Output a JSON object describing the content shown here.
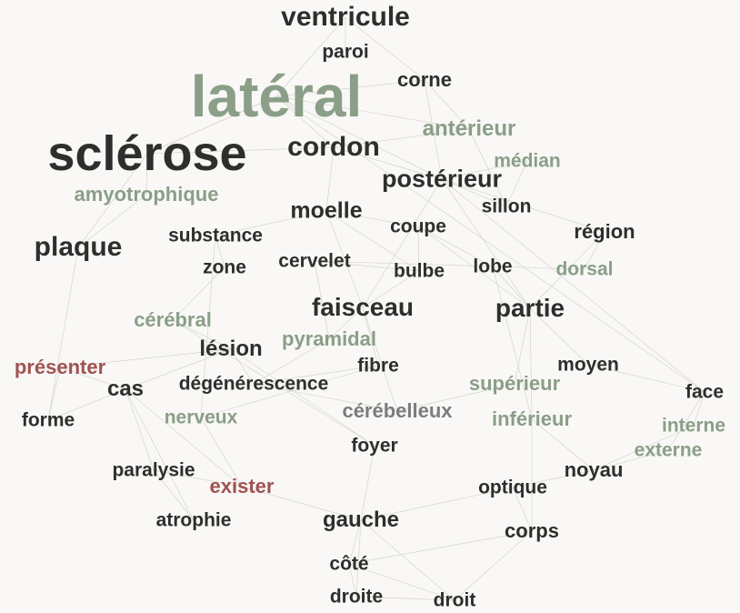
{
  "colors": {
    "noun": "#2e2e2c",
    "adjective": "#8a9e88",
    "verb": "#a05252",
    "other": "#7c7c7c",
    "edge": "#d6d4d0",
    "background": "#f9f8f6"
  },
  "words": [
    {
      "id": "ventricule",
      "text": "ventricule",
      "category": "noun"
    },
    {
      "id": "paroi",
      "text": "paroi",
      "category": "noun"
    },
    {
      "id": "lateral",
      "text": "latéral",
      "category": "adjective"
    },
    {
      "id": "corne",
      "text": "corne",
      "category": "noun"
    },
    {
      "id": "sclerose",
      "text": "sclérose",
      "category": "noun"
    },
    {
      "id": "cordon",
      "text": "cordon",
      "category": "noun"
    },
    {
      "id": "anterieur",
      "text": "antérieur",
      "category": "adjective"
    },
    {
      "id": "median",
      "text": "médian",
      "category": "adjective"
    },
    {
      "id": "posterieur",
      "text": "postérieur",
      "category": "noun"
    },
    {
      "id": "amyotrophique",
      "text": "amyotrophique",
      "category": "adjective"
    },
    {
      "id": "moelle",
      "text": "moelle",
      "category": "noun"
    },
    {
      "id": "sillon",
      "text": "sillon",
      "category": "noun"
    },
    {
      "id": "coupe",
      "text": "coupe",
      "category": "noun"
    },
    {
      "id": "region",
      "text": "région",
      "category": "noun"
    },
    {
      "id": "plaque",
      "text": "plaque",
      "category": "noun"
    },
    {
      "id": "substance",
      "text": "substance",
      "category": "noun"
    },
    {
      "id": "zone",
      "text": "zone",
      "category": "noun"
    },
    {
      "id": "cervelet",
      "text": "cervelet",
      "category": "noun"
    },
    {
      "id": "bulbe",
      "text": "bulbe",
      "category": "noun"
    },
    {
      "id": "lobe",
      "text": "lobe",
      "category": "noun"
    },
    {
      "id": "dorsal",
      "text": "dorsal",
      "category": "adjective"
    },
    {
      "id": "faisceau",
      "text": "faisceau",
      "category": "noun"
    },
    {
      "id": "partie",
      "text": "partie",
      "category": "noun"
    },
    {
      "id": "cerebral",
      "text": "cérébral",
      "category": "adjective"
    },
    {
      "id": "pyramidal",
      "text": "pyramidal",
      "category": "adjective"
    },
    {
      "id": "lesion",
      "text": "lésion",
      "category": "noun"
    },
    {
      "id": "presenter",
      "text": "présenter",
      "category": "verb"
    },
    {
      "id": "fibre",
      "text": "fibre",
      "category": "noun"
    },
    {
      "id": "moyen",
      "text": "moyen",
      "category": "noun"
    },
    {
      "id": "cas",
      "text": "cas",
      "category": "noun"
    },
    {
      "id": "degenerescence",
      "text": "dégénérescence",
      "category": "noun"
    },
    {
      "id": "superieur",
      "text": "supérieur",
      "category": "adjective"
    },
    {
      "id": "face",
      "text": "face",
      "category": "noun"
    },
    {
      "id": "cerebelleux",
      "text": "cérébelleux",
      "category": "other"
    },
    {
      "id": "forme",
      "text": "forme",
      "category": "noun"
    },
    {
      "id": "nerveux",
      "text": "nerveux",
      "category": "adjective"
    },
    {
      "id": "inferieur",
      "text": "inférieur",
      "category": "adjective"
    },
    {
      "id": "interne",
      "text": "interne",
      "category": "adjective"
    },
    {
      "id": "foyer",
      "text": "foyer",
      "category": "noun"
    },
    {
      "id": "externe",
      "text": "externe",
      "category": "adjective"
    },
    {
      "id": "paralysie",
      "text": "paralysie",
      "category": "noun"
    },
    {
      "id": "noyau",
      "text": "noyau",
      "category": "noun"
    },
    {
      "id": "exister",
      "text": "exister",
      "category": "verb"
    },
    {
      "id": "optique",
      "text": "optique",
      "category": "noun"
    },
    {
      "id": "atrophie",
      "text": "atrophie",
      "category": "noun"
    },
    {
      "id": "gauche",
      "text": "gauche",
      "category": "noun"
    },
    {
      "id": "corps",
      "text": "corps",
      "category": "noun"
    },
    {
      "id": "cote",
      "text": "côté",
      "category": "noun"
    },
    {
      "id": "droite",
      "text": "droite",
      "category": "noun"
    },
    {
      "id": "droit",
      "text": "droit",
      "category": "noun"
    }
  ],
  "edges": [
    [
      "ventricule",
      "lateral"
    ],
    [
      "ventricule",
      "paroi"
    ],
    [
      "ventricule",
      "corne"
    ],
    [
      "lateral",
      "sclerose"
    ],
    [
      "lateral",
      "cordon"
    ],
    [
      "lateral",
      "corne"
    ],
    [
      "lateral",
      "posterieur"
    ],
    [
      "lateral",
      "anterieur"
    ],
    [
      "lateral",
      "face"
    ],
    [
      "sclerose",
      "amyotrophique"
    ],
    [
      "sclerose",
      "plaque"
    ],
    [
      "sclerose",
      "cordon"
    ],
    [
      "sclerose",
      "lateral"
    ],
    [
      "cordon",
      "posterieur"
    ],
    [
      "cordon",
      "anterieur"
    ],
    [
      "cordon",
      "moelle"
    ],
    [
      "posterieur",
      "sillon"
    ],
    [
      "posterieur",
      "median"
    ],
    [
      "posterieur",
      "corne"
    ],
    [
      "posterieur",
      "faisceau"
    ],
    [
      "posterieur",
      "region"
    ],
    [
      "posterieur",
      "face"
    ],
    [
      "anterieur",
      "corne"
    ],
    [
      "anterieur",
      "sillon"
    ],
    [
      "median",
      "sillon"
    ],
    [
      "moelle",
      "coupe"
    ],
    [
      "moelle",
      "substance"
    ],
    [
      "moelle",
      "bulbe"
    ],
    [
      "moelle",
      "faisceau"
    ],
    [
      "coupe",
      "bulbe"
    ],
    [
      "coupe",
      "lobe"
    ],
    [
      "coupe",
      "partie"
    ],
    [
      "lobe",
      "dorsal"
    ],
    [
      "lobe",
      "partie"
    ],
    [
      "lobe",
      "inferieur"
    ],
    [
      "region",
      "dorsal"
    ],
    [
      "region",
      "partie"
    ],
    [
      "faisceau",
      "pyramidal"
    ],
    [
      "faisceau",
      "cerebelleux"
    ],
    [
      "faisceau",
      "fibre"
    ],
    [
      "faisceau",
      "bulbe"
    ],
    [
      "partie",
      "superieur"
    ],
    [
      "partie",
      "inferieur"
    ],
    [
      "partie",
      "moyen"
    ],
    [
      "partie",
      "posterieur"
    ],
    [
      "moyen",
      "face"
    ],
    [
      "face",
      "interne"
    ],
    [
      "face",
      "externe"
    ],
    [
      "interne",
      "noyau"
    ],
    [
      "externe",
      "noyau"
    ],
    [
      "superieur",
      "cerebelleux"
    ],
    [
      "inferieur",
      "corps"
    ],
    [
      "optique",
      "noyau"
    ],
    [
      "optique",
      "corps"
    ],
    [
      "cerebral",
      "lesion"
    ],
    [
      "lesion",
      "degenerescence"
    ],
    [
      "lesion",
      "foyer"
    ],
    [
      "lesion",
      "cas"
    ],
    [
      "lesion",
      "presenter"
    ],
    [
      "pyramidal",
      "degenerescence"
    ],
    [
      "fibre",
      "degenerescence"
    ],
    [
      "fibre",
      "nerveux"
    ],
    [
      "cas",
      "forme"
    ],
    [
      "cas",
      "presenter"
    ],
    [
      "cas",
      "paralysie"
    ],
    [
      "cas",
      "exister"
    ],
    [
      "cas",
      "atrophie"
    ],
    [
      "forme",
      "plaque"
    ],
    [
      "paralysie",
      "exister"
    ],
    [
      "paralysie",
      "atrophie"
    ],
    [
      "exister",
      "gauche"
    ],
    [
      "gauche",
      "cote"
    ],
    [
      "gauche",
      "droit"
    ],
    [
      "gauche",
      "droite"
    ],
    [
      "gauche",
      "foyer"
    ],
    [
      "cote",
      "droite"
    ],
    [
      "cote",
      "droit"
    ],
    [
      "cote",
      "corps"
    ],
    [
      "droite",
      "droit"
    ],
    [
      "foyer",
      "cerebral"
    ],
    [
      "zone",
      "substance"
    ],
    [
      "zone",
      "cerebral"
    ],
    [
      "cervelet",
      "bulbe"
    ],
    [
      "cervelet",
      "lobe"
    ],
    [
      "cervelet",
      "pyramidal"
    ],
    [
      "substance",
      "nerveux"
    ],
    [
      "amyotrophique",
      "plaque"
    ],
    [
      "presenter",
      "forme"
    ],
    [
      "nerveux",
      "exister"
    ],
    [
      "degenerescence",
      "cerebelleux"
    ],
    [
      "optique",
      "gauche"
    ],
    [
      "corps",
      "droit"
    ],
    [
      "inferieur",
      "noyau"
    ]
  ]
}
